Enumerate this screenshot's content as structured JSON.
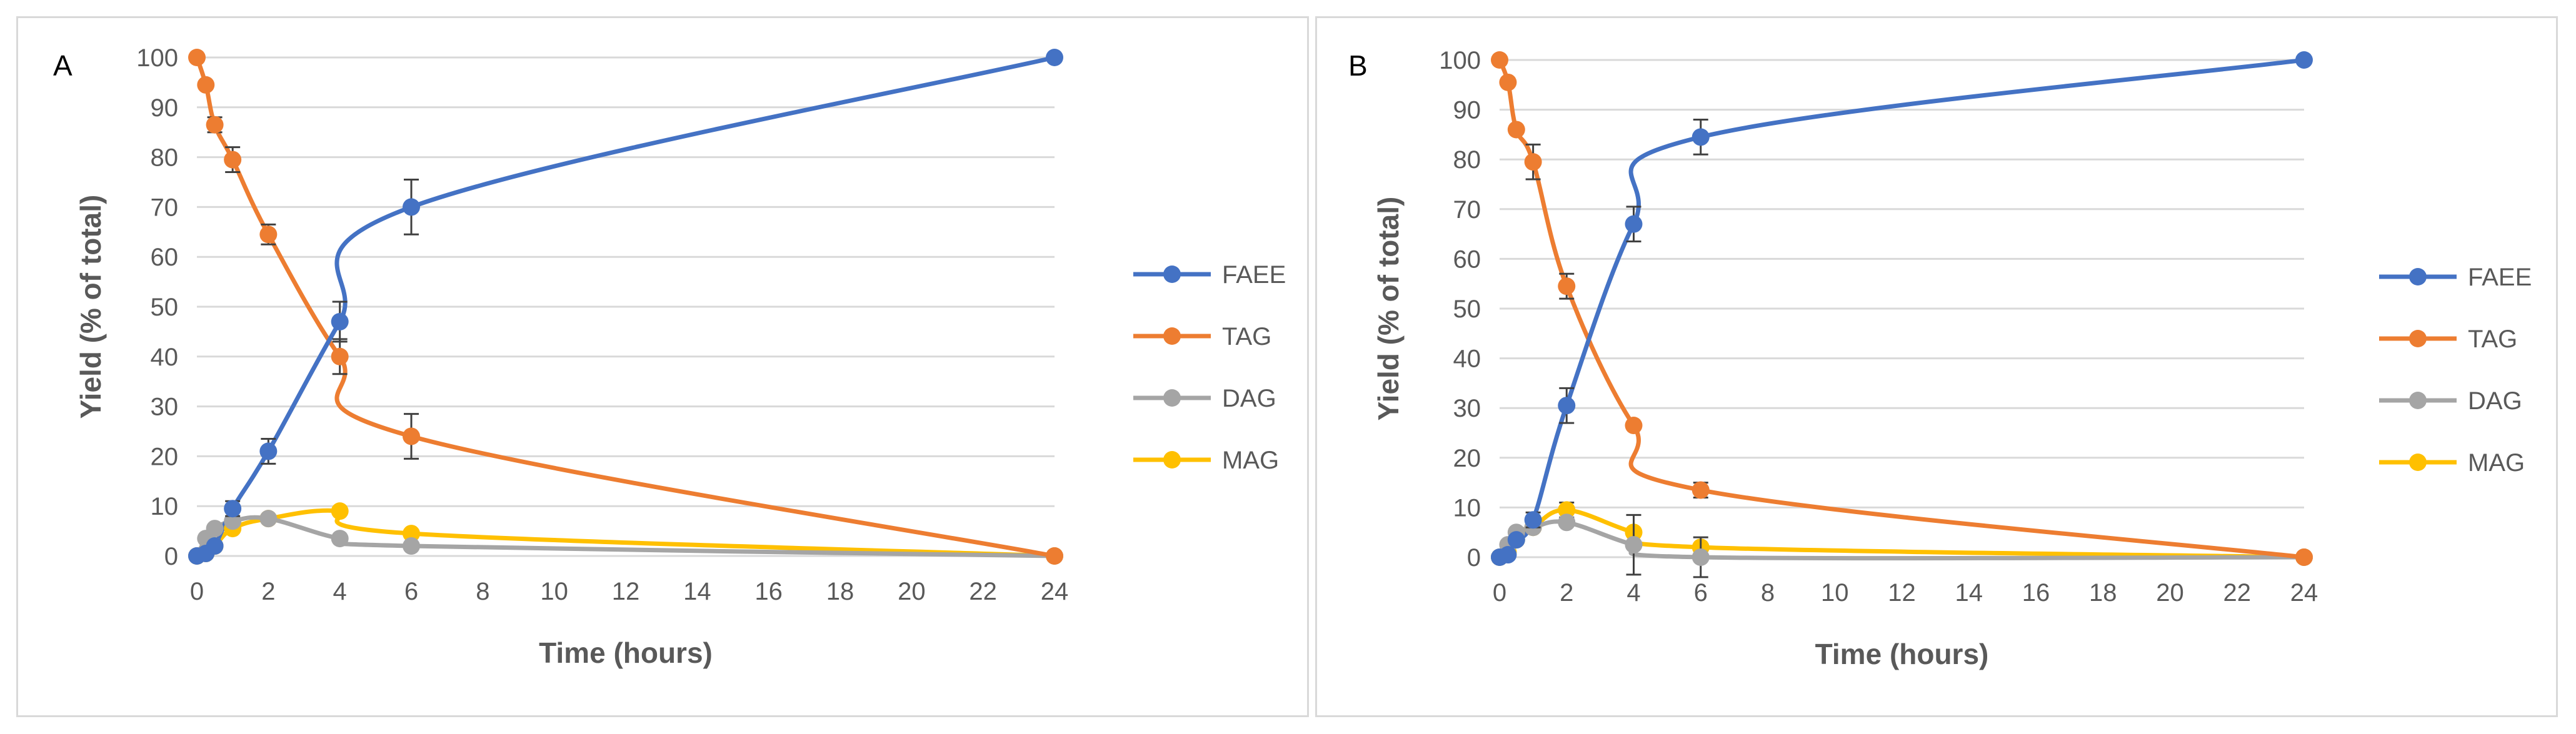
{
  "chart_data": [
    {
      "type": "line",
      "panel_label": "A",
      "xlabel": "Time (hours)",
      "ylabel": "Yield (% of total)",
      "xlim": [
        0,
        24
      ],
      "ylim": [
        0,
        100
      ],
      "xticks": [
        0,
        2,
        4,
        6,
        8,
        10,
        12,
        14,
        16,
        18,
        20,
        22,
        24
      ],
      "yticks": [
        0,
        10,
        20,
        30,
        40,
        50,
        60,
        70,
        80,
        90,
        100
      ],
      "gridlines": "horizontal",
      "legend_position": "right",
      "series": [
        {
          "name": "FAEE",
          "color": "#4472c4",
          "x": [
            0,
            0.25,
            0.5,
            1,
            2,
            4,
            6,
            24
          ],
          "values": [
            0,
            0.5,
            2,
            9.5,
            21,
            47,
            70,
            100
          ],
          "errors": [
            0,
            0,
            0,
            1.5,
            2.5,
            4,
            5.5,
            0
          ]
        },
        {
          "name": "TAG",
          "color": "#ed7d31",
          "x": [
            0,
            0.25,
            0.5,
            1,
            2,
            4,
            6,
            24
          ],
          "values": [
            100,
            94.5,
            86.5,
            79.5,
            64.5,
            40,
            24,
            0
          ],
          "errors": [
            0,
            0,
            1.5,
            2.5,
            2,
            3.5,
            4.5,
            0
          ]
        },
        {
          "name": "DAG",
          "color": "#a5a5a5",
          "x": [
            0,
            0.25,
            0.5,
            1,
            2,
            4,
            6,
            24
          ],
          "values": [
            0,
            3.5,
            5.5,
            7,
            7.5,
            3.5,
            2,
            0
          ],
          "errors": [
            0,
            0,
            0,
            0,
            0,
            0,
            0,
            0
          ]
        },
        {
          "name": "MAG",
          "color": "#ffc000",
          "x": [
            0,
            0.25,
            0.5,
            1,
            2,
            4,
            6,
            24
          ],
          "values": [
            0,
            0.5,
            2,
            5.5,
            7.5,
            9,
            4.5,
            0
          ],
          "errors": [
            0,
            0,
            0,
            0,
            0,
            0,
            0,
            0
          ]
        }
      ],
      "x_tick_labels": [
        "0",
        "2",
        "4",
        "6",
        "8",
        "10",
        "12",
        "14",
        "16",
        "18",
        "20",
        "22",
        "24"
      ],
      "y_tick_labels": [
        "0",
        "10",
        "20",
        "30",
        "40",
        "50",
        "60",
        "70",
        "80",
        "90",
        "100"
      ]
    },
    {
      "type": "line",
      "panel_label": "B",
      "xlabel": "Time (hours)",
      "ylabel": "Yield (% of total)",
      "xlim": [
        0,
        24
      ],
      "ylim": [
        0,
        100
      ],
      "xticks": [
        0,
        2,
        4,
        6,
        8,
        10,
        12,
        14,
        16,
        18,
        20,
        22,
        24
      ],
      "yticks": [
        0,
        10,
        20,
        30,
        40,
        50,
        60,
        70,
        80,
        90,
        100
      ],
      "gridlines": "horizontal",
      "legend_position": "right",
      "series": [
        {
          "name": "FAEE",
          "color": "#4472c4",
          "x": [
            0,
            0.25,
            0.5,
            1,
            2,
            4,
            6,
            24
          ],
          "values": [
            0,
            0.5,
            3.5,
            7.5,
            30.5,
            67,
            84.5,
            100
          ],
          "errors": [
            0,
            0,
            0,
            1.5,
            3.5,
            3.5,
            3.5,
            0
          ]
        },
        {
          "name": "TAG",
          "color": "#ed7d31",
          "x": [
            0,
            0.25,
            0.5,
            1,
            2,
            4,
            6,
            24
          ],
          "values": [
            100,
            95.5,
            86,
            79.5,
            54.5,
            26.5,
            13.5,
            0
          ],
          "errors": [
            0,
            0,
            0,
            3.5,
            2.5,
            0,
            1.5,
            0
          ]
        },
        {
          "name": "DAG",
          "color": "#a5a5a5",
          "x": [
            0,
            0.25,
            0.5,
            1,
            2,
            4,
            6,
            24
          ],
          "values": [
            0,
            2.5,
            5,
            6,
            7,
            2.5,
            0,
            0
          ],
          "errors": [
            0,
            0,
            0,
            0,
            0,
            6,
            4,
            0
          ]
        },
        {
          "name": "MAG",
          "color": "#ffc000",
          "x": [
            0,
            0.25,
            0.5,
            1,
            2,
            4,
            6,
            24
          ],
          "values": [
            0,
            1,
            3.5,
            6,
            9.5,
            5,
            2,
            0
          ],
          "errors": [
            0,
            0,
            0,
            0,
            1.5,
            0,
            0,
            0
          ]
        }
      ],
      "x_tick_labels": [
        "0",
        "2",
        "4",
        "6",
        "8",
        "10",
        "12",
        "14",
        "16",
        "18",
        "20",
        "22",
        "24"
      ],
      "y_tick_labels": [
        "0",
        "10",
        "20",
        "30",
        "40",
        "50",
        "60",
        "70",
        "80",
        "90",
        "100"
      ]
    }
  ]
}
